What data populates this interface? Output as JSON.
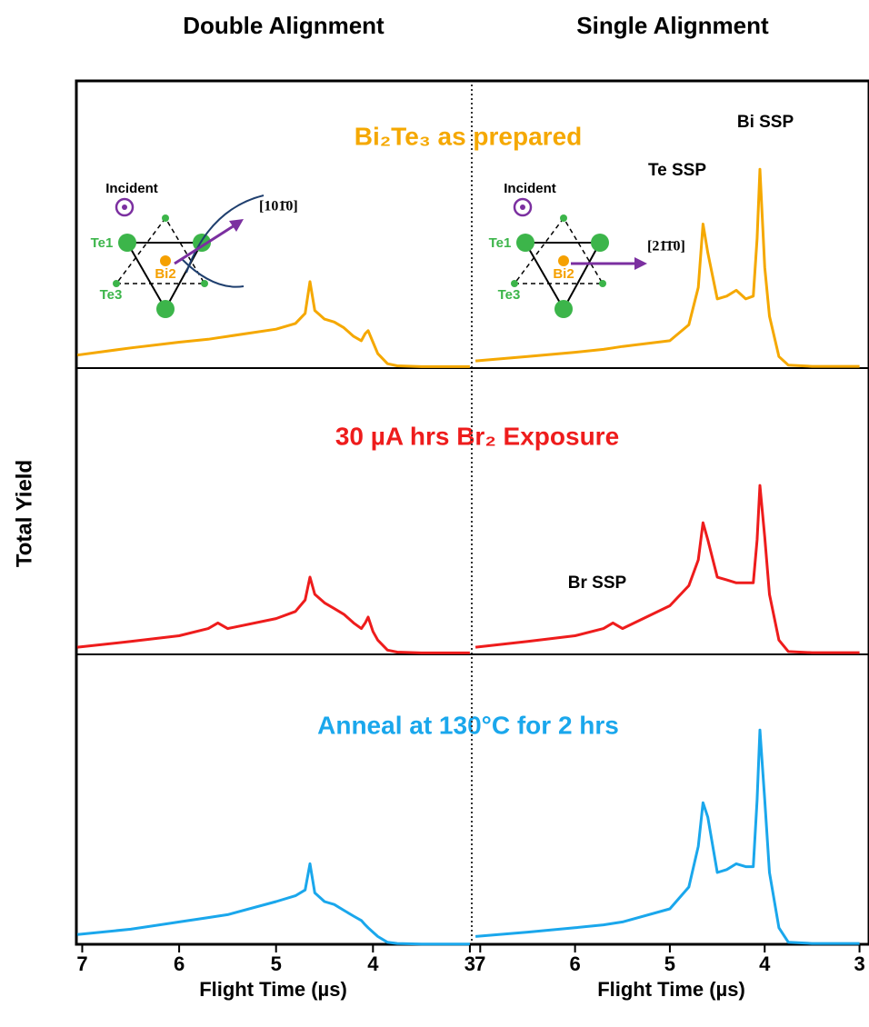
{
  "figure": {
    "column_titles": [
      "Double Alignment",
      "Single Alignment"
    ],
    "row_titles": [
      "Bi₂Te₃ as prepared",
      "30 µA hrs Br₂ Exposure",
      "Anneal at 130°C for 2 hrs"
    ],
    "ylabel": "Total Yield"
  },
  "chart_data": [
    {
      "type": "line",
      "color": "#f5a800",
      "xlim": [
        7.07,
        2.99
      ],
      "ylim": [
        0,
        100
      ],
      "inset_labels": [
        "Incident",
        "Te1",
        "Bi2",
        "Te3",
        "[101̄0]"
      ],
      "x": [
        7.05,
        6.5,
        6.0,
        5.7,
        5.6,
        5.5,
        5.0,
        4.8,
        4.7,
        4.65,
        4.6,
        4.5,
        4.4,
        4.3,
        4.2,
        4.12,
        4.08,
        4.05,
        4.0,
        3.95,
        3.85,
        3.75,
        3.5,
        3.0
      ],
      "values": [
        4.5,
        7,
        9,
        10,
        10.5,
        11,
        13.5,
        15.5,
        19,
        30,
        20,
        17,
        16,
        14,
        11,
        9.5,
        12,
        13,
        9,
        5,
        1.5,
        0.8,
        0.5,
        0.5
      ]
    },
    {
      "type": "line",
      "color": "#f5a800",
      "xlim": [
        7.07,
        2.9
      ],
      "ylim": [
        0,
        100
      ],
      "inset_labels": [
        "Incident",
        "Te1",
        "Bi2",
        "Te3",
        "[21̄1̄0]"
      ],
      "annotations": [
        "Te SSP",
        "Bi SSP"
      ],
      "x": [
        7.05,
        6.5,
        6.0,
        5.7,
        5.6,
        5.5,
        5.0,
        4.8,
        4.7,
        4.65,
        4.6,
        4.5,
        4.4,
        4.3,
        4.2,
        4.12,
        4.08,
        4.05,
        4.0,
        3.95,
        3.85,
        3.75,
        3.5,
        3.0
      ],
      "values": [
        2.5,
        4,
        5.5,
        6.5,
        7,
        7.5,
        9.5,
        15,
        28,
        50,
        40,
        24,
        25,
        27,
        24,
        25,
        45,
        69,
        35,
        18,
        4,
        1,
        0.6,
        0.6
      ]
    },
    {
      "type": "line",
      "color": "#ee1c1c",
      "xlim": [
        7.07,
        2.99
      ],
      "ylim": [
        0,
        100
      ],
      "x": [
        7.05,
        6.5,
        6.0,
        5.7,
        5.6,
        5.5,
        5.0,
        4.8,
        4.7,
        4.65,
        4.6,
        4.5,
        4.4,
        4.3,
        4.2,
        4.12,
        4.08,
        4.05,
        4.0,
        3.95,
        3.85,
        3.75,
        3.5,
        3.0
      ],
      "values": [
        2.5,
        4.5,
        6.5,
        9,
        11,
        9,
        12.5,
        15,
        19,
        27,
        21,
        18,
        16,
        14,
        11,
        9,
        11,
        13,
        8,
        5,
        1.5,
        0.8,
        0.5,
        0.5
      ]
    },
    {
      "type": "line",
      "color": "#ee1c1c",
      "xlim": [
        7.07,
        2.9
      ],
      "ylim": [
        0,
        100
      ],
      "annotations": [
        "Br SSP"
      ],
      "x": [
        7.05,
        6.5,
        6.0,
        5.7,
        5.6,
        5.5,
        5.0,
        4.8,
        4.7,
        4.65,
        4.6,
        4.5,
        4.4,
        4.3,
        4.2,
        4.12,
        4.08,
        4.05,
        4.0,
        3.95,
        3.85,
        3.75,
        3.5,
        3.0
      ],
      "values": [
        2.5,
        4.5,
        6.5,
        9,
        11,
        9,
        17,
        24,
        33,
        46,
        40,
        27,
        26,
        25,
        25,
        25,
        40,
        59,
        41,
        21,
        5,
        1,
        0.6,
        0.6
      ]
    },
    {
      "type": "line",
      "color": "#1aa7ec",
      "xlim": [
        7.07,
        2.99
      ],
      "ylim": [
        0,
        100
      ],
      "xticks": [
        7,
        6,
        5,
        4,
        3
      ],
      "xlabel": "Flight Time (µs)",
      "x": [
        7.05,
        6.5,
        6.0,
        5.7,
        5.6,
        5.5,
        5.0,
        4.8,
        4.7,
        4.65,
        4.6,
        4.5,
        4.4,
        4.3,
        4.2,
        4.12,
        4.08,
        4.05,
        4.0,
        3.95,
        3.85,
        3.75,
        3.5,
        3.0
      ],
      "values": [
        3.7,
        5.5,
        8,
        9.5,
        10,
        10.5,
        15,
        17,
        19,
        28,
        18,
        15,
        14,
        12,
        10,
        8.5,
        7,
        6,
        4.5,
        3,
        1,
        0.6,
        0.4,
        0.4
      ]
    },
    {
      "type": "line",
      "color": "#1aa7ec",
      "xlim": [
        7.07,
        2.9
      ],
      "ylim": [
        0,
        100
      ],
      "xticks": [
        7,
        6,
        5,
        4,
        3
      ],
      "xlabel": "Flight Time (µs)",
      "x": [
        7.05,
        6.5,
        6.0,
        5.7,
        5.6,
        5.5,
        5.0,
        4.8,
        4.7,
        4.65,
        4.6,
        4.5,
        4.4,
        4.3,
        4.2,
        4.12,
        4.08,
        4.05,
        4.0,
        3.95,
        3.85,
        3.75,
        3.5,
        3.0
      ],
      "values": [
        3,
        4.5,
        6,
        7,
        7.5,
        8,
        12.5,
        20,
        34,
        49,
        44,
        25,
        26,
        28,
        27,
        27,
        50,
        74,
        50,
        25,
        6,
        1,
        0.6,
        0.6
      ]
    }
  ]
}
